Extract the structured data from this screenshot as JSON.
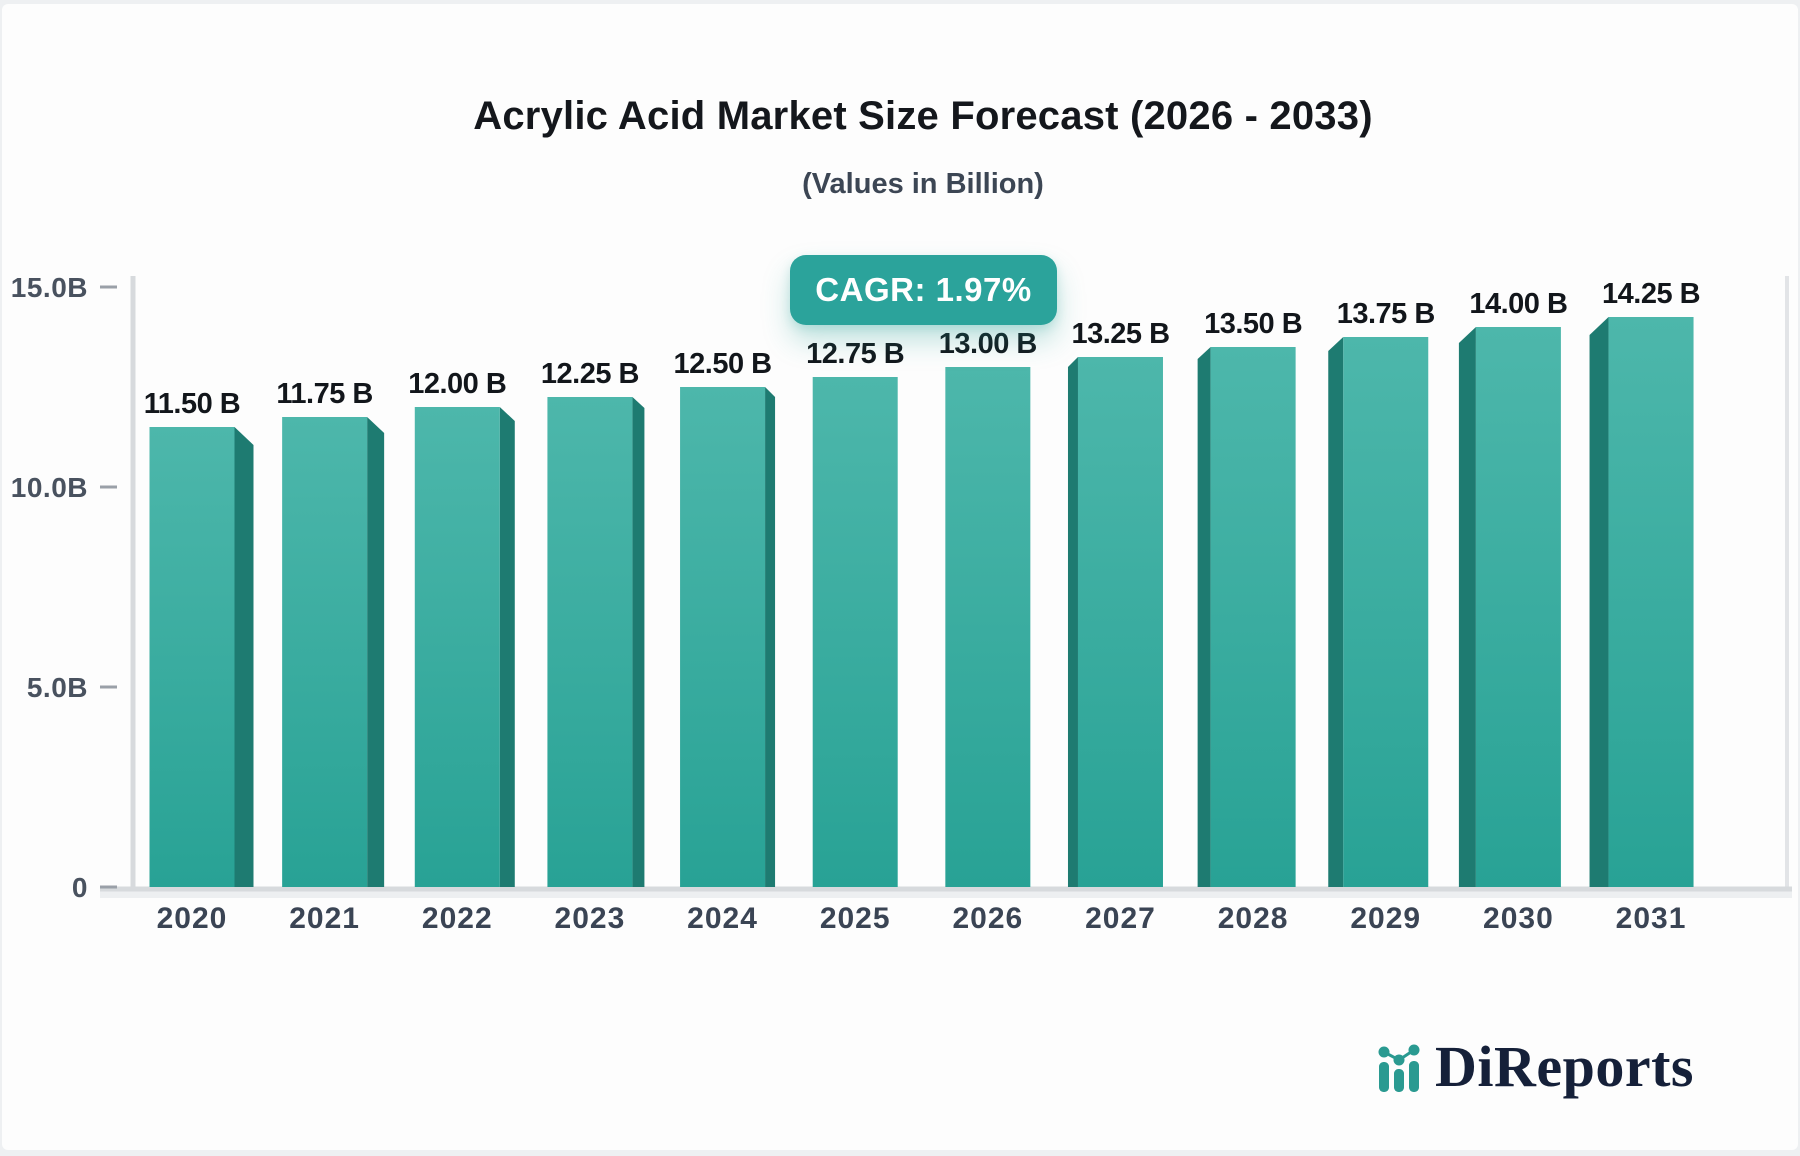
{
  "title": "Acrylic Acid Market Size Forecast (2026 - 2033)",
  "subtitle": "(Values in Billion)",
  "cagr_badge": "CAGR: 1.97%",
  "logo": {
    "text": "DiReports"
  },
  "chart_data": {
    "type": "bar",
    "title": "Acrylic Acid Market Size Forecast (2026 - 2033)",
    "subtitle": "(Values in Billion)",
    "annotation": "CAGR: 1.97%",
    "categories": [
      "2020",
      "2021",
      "2022",
      "2023",
      "2024",
      "2025",
      "2026",
      "2027",
      "2028",
      "2029",
      "2030",
      "2031"
    ],
    "values": [
      11.5,
      11.75,
      12.0,
      12.25,
      12.5,
      12.75,
      13.0,
      13.25,
      13.5,
      13.75,
      14.0,
      14.25
    ],
    "value_labels": [
      "11.50 B",
      "11.75 B",
      "12.00 B",
      "12.25 B",
      "12.50 B",
      "12.75 B",
      "13.00 B",
      "13.25 B",
      "13.50 B",
      "13.75 B",
      "14.00 B",
      "14.25 B"
    ],
    "xlabel": "",
    "ylabel": "",
    "ylim": [
      0,
      15
    ],
    "y_ticks": [
      {
        "value": 0,
        "label": "0"
      },
      {
        "value": 5,
        "label": "5.0B"
      },
      {
        "value": 10,
        "label": "10.0B"
      },
      {
        "value": 15,
        "label": "15.0B"
      }
    ],
    "grid": false,
    "legend": false,
    "colors": {
      "bar_front_top": "#4db7ab",
      "bar_front_bottom": "#28a295",
      "bar_side": "#1e7b71",
      "badge_bg": "#2ba39b",
      "axis_line": "#d7dadd",
      "tick_mark": "#9aa0a8",
      "value_label": "#12161b",
      "year_label": "#3a4454",
      "ytick_label": "#49525f",
      "logo_teal": "#2a9a91",
      "logo_navy": "#152039"
    }
  }
}
